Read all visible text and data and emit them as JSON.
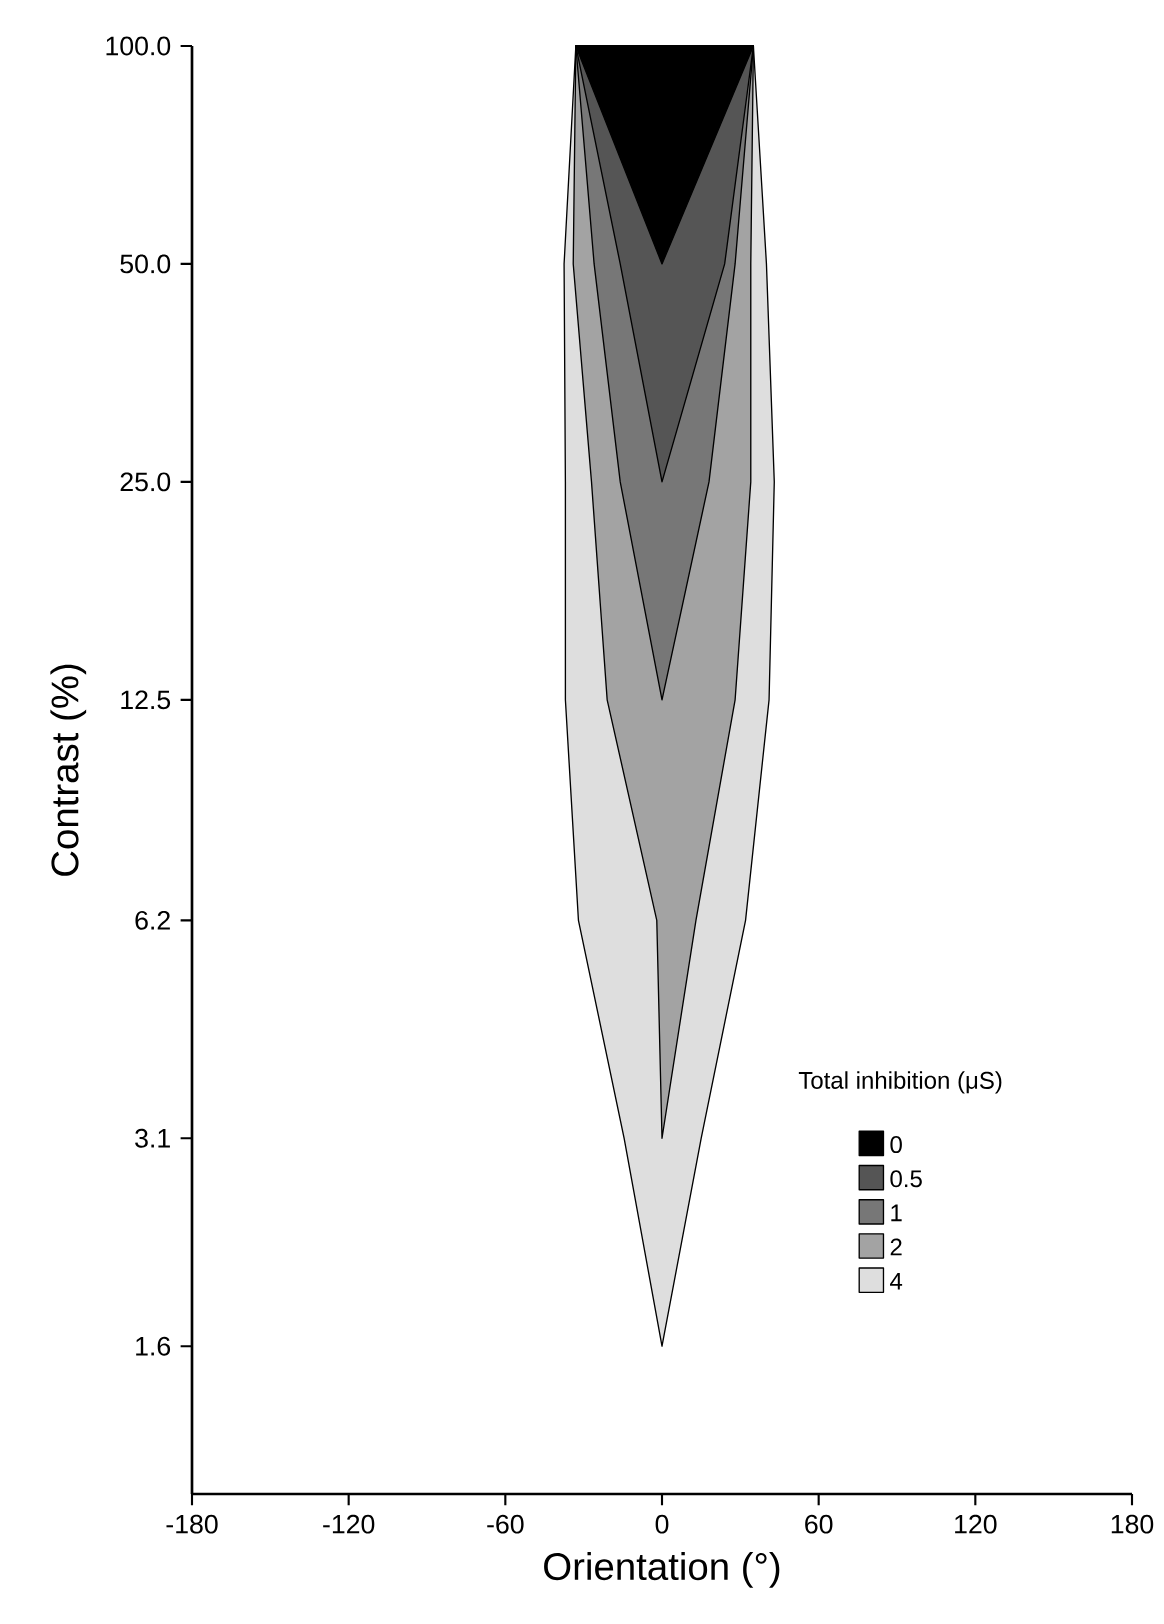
{
  "chart_data": {
    "type": "area",
    "xlabel": "Orientation (°)",
    "ylabel": "Contrast (%)",
    "legend_title": "Total inhibition (μS)",
    "legend": "right",
    "log": "y",
    "xlim": [
      -180,
      180
    ],
    "xticks": [
      -180,
      -120,
      -60,
      0,
      60,
      120,
      180
    ],
    "ylim": [
      1,
      100
    ],
    "yticks": [
      {
        "value": 100,
        "label": "100.0"
      },
      {
        "value": 50,
        "label": "50.0"
      },
      {
        "value": 25,
        "label": "25.0"
      },
      {
        "value": 12.5,
        "label": "12.5"
      },
      {
        "value": 6.2,
        "label": "6.2"
      },
      {
        "value": 3.1,
        "label": "3.1"
      },
      {
        "value": 1.6,
        "label": "1.6"
      }
    ],
    "series": [
      {
        "name": "0",
        "color": "#000000",
        "x": [
          0,
          -33,
          35
        ],
        "values": [
          50,
          100,
          100
        ]
      },
      {
        "name": "0.5",
        "color": "#555555",
        "x": [
          0,
          -16,
          -33,
          35,
          24
        ],
        "values": [
          25,
          50,
          100,
          100,
          50
        ]
      },
      {
        "name": "1",
        "color": "#777777",
        "x": [
          0,
          -16,
          -26,
          -33,
          35,
          28,
          18
        ],
        "values": [
          12.5,
          25,
          50,
          100,
          100,
          50,
          25
        ]
      },
      {
        "name": "2",
        "color": "#a3a3a3",
        "x": [
          0,
          -2,
          -21,
          -27,
          -34,
          -33,
          35,
          34,
          34,
          28,
          13
        ],
        "values": [
          3.1,
          6.2,
          12.5,
          25,
          50,
          100,
          100,
          50,
          25,
          12.5,
          6.2
        ]
      },
      {
        "name": "4",
        "color": "#dedede",
        "x": [
          0,
          -14.5,
          -32,
          -37,
          -37,
          -37.5,
          -33,
          35,
          40,
          43,
          41,
          32,
          15
        ],
        "values": [
          1.6,
          3.1,
          6.2,
          12.5,
          25,
          50,
          100,
          100,
          50,
          25,
          12.5,
          6.2,
          3.1
        ]
      }
    ]
  }
}
